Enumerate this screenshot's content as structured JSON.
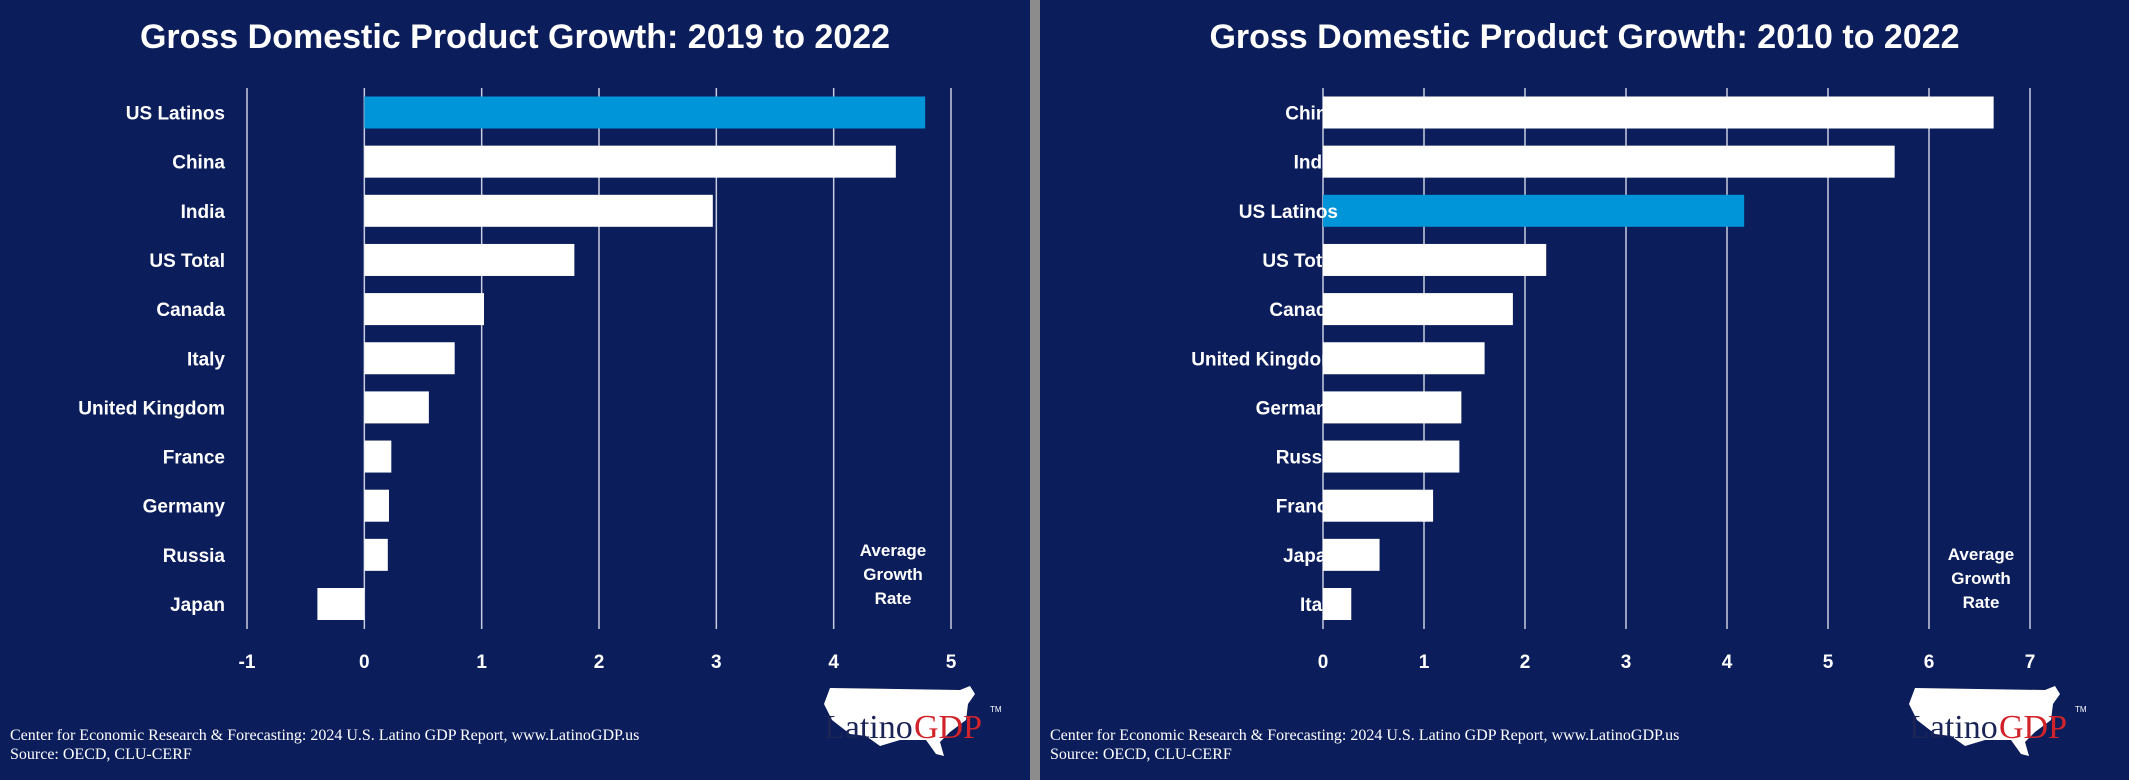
{
  "colors": {
    "background": "#0b1d5a",
    "highlight": "#0094d9",
    "bar": "#ffffff",
    "logo_red": "#d2232a",
    "logo_navy": "#1a2456"
  },
  "chart_data": [
    {
      "type": "bar",
      "orientation": "horizontal",
      "title": "Gross Domestic Product Growth: 2019 to 2022",
      "categories": [
        "US Latinos",
        "China",
        "India",
        "US Total",
        "Canada",
        "Italy",
        "United Kingdom",
        "France",
        "Germany",
        "Russia",
        "Japan"
      ],
      "values": [
        4.78,
        4.53,
        2.97,
        1.79,
        1.02,
        0.77,
        0.55,
        0.23,
        0.21,
        0.2,
        -0.4
      ],
      "highlight": "US Latinos",
      "xlim": [
        -1,
        5
      ],
      "xticks": [
        "-1",
        "0",
        "1",
        "2",
        "3",
        "4",
        "5"
      ],
      "annotation": [
        "Average",
        "Growth",
        "Rate"
      ],
      "grid": true
    },
    {
      "type": "bar",
      "orientation": "horizontal",
      "title": "Gross Domestic Product Growth: 2010 to 2022",
      "categories": [
        "China",
        "India",
        "US Latinos",
        "US Total",
        "Canada",
        "United Kingdom",
        "Germany",
        "Russia",
        "France",
        "Japan",
        "Italy"
      ],
      "values": [
        6.64,
        5.66,
        4.17,
        2.21,
        1.88,
        1.6,
        1.37,
        1.35,
        1.09,
        0.56,
        0.28
      ],
      "highlight": "US Latinos",
      "xlim": [
        0,
        7
      ],
      "xticks": [
        "0",
        "1",
        "2",
        "3",
        "4",
        "5",
        "6",
        "7"
      ],
      "annotation": [
        "Average",
        "Growth",
        "Rate"
      ],
      "grid": true
    }
  ],
  "footer": {
    "line1": "Center for Economic Research & Forecasting: 2024 U.S. Latino GDP Report, www.LatinoGDP.us",
    "line2": "Source: OECD, CLU-CERF"
  },
  "logo": {
    "text1": "Latino",
    "text2": "GDP",
    "tm": "TM"
  }
}
